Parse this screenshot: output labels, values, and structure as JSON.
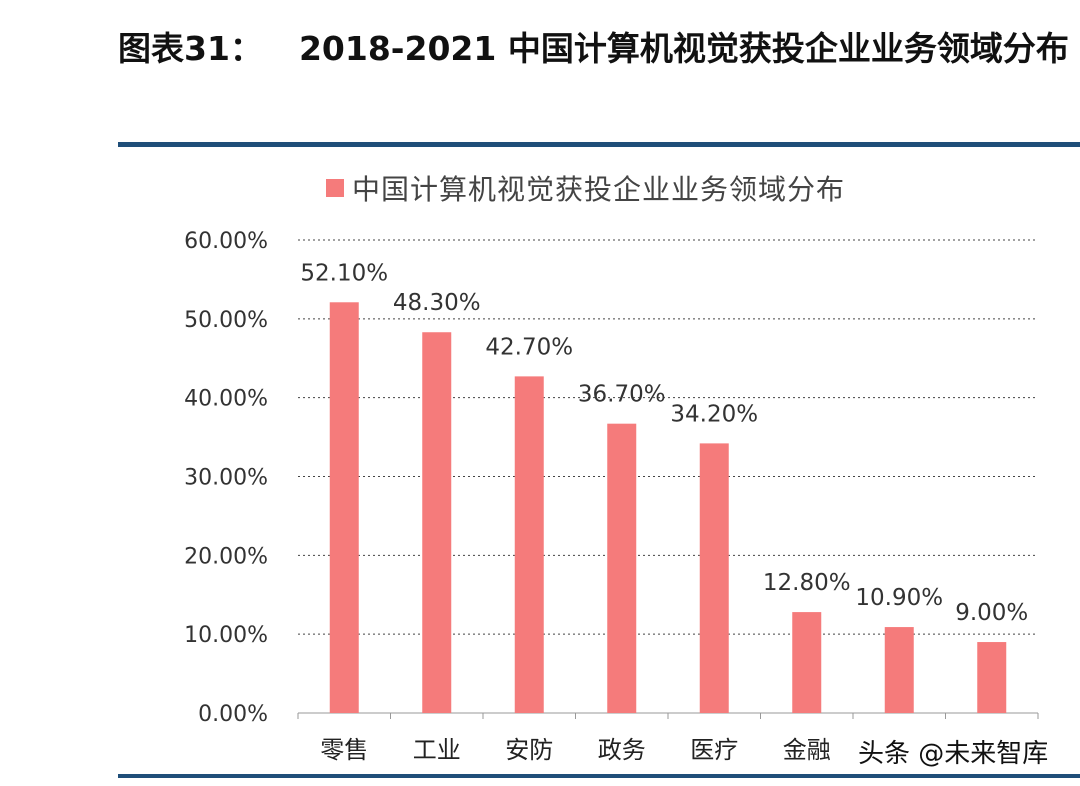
{
  "figure": {
    "number_label": "图表31：",
    "title": "2018-2021 中国计算机视觉获投企业业务领域分布"
  },
  "watermark": "头条 @未来智库",
  "colors": {
    "bar": "#f57b7b",
    "rule": "#1f4e79",
    "grid": "#444444"
  },
  "chart_data": {
    "type": "bar",
    "title": "",
    "xlabel": "",
    "ylabel": "",
    "legend": {
      "entries": [
        "中国计算机视觉获投企业业务领域分布"
      ],
      "placement": "top"
    },
    "categories": [
      "零售",
      "工业",
      "安防",
      "政务",
      "医疗",
      "金融",
      "",
      ""
    ],
    "values": [
      52.1,
      48.3,
      42.7,
      36.7,
      34.2,
      12.8,
      10.9,
      9.0
    ],
    "data_labels": [
      "52.10%",
      "48.30%",
      "42.70%",
      "36.70%",
      "34.20%",
      "12.80%",
      "10.90%",
      "9.00%"
    ],
    "ylim": [
      0,
      60
    ],
    "yticks": [
      0,
      10,
      20,
      30,
      40,
      50,
      60
    ],
    "ytick_labels": [
      "0.00%",
      "10.00%",
      "20.00%",
      "30.00%",
      "40.00%",
      "50.00%",
      "60.00%"
    ],
    "grid": true,
    "grid_style": "dotted"
  }
}
